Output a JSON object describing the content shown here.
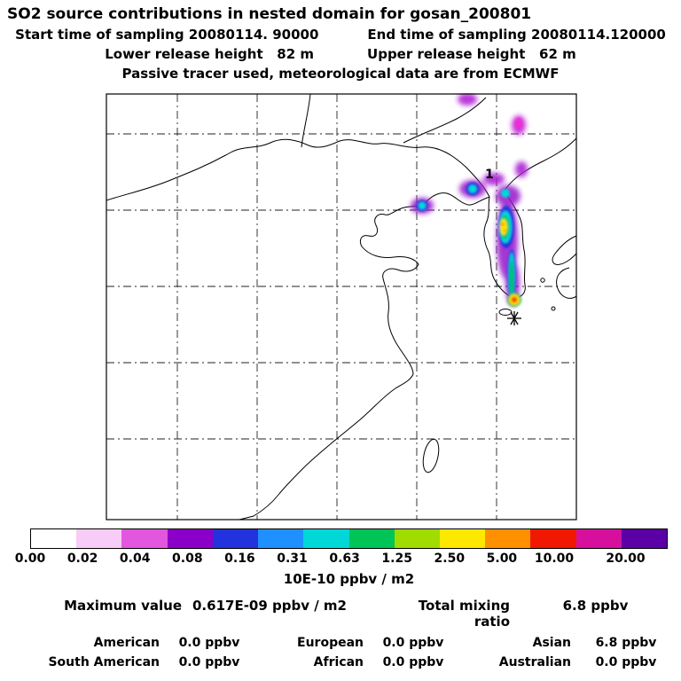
{
  "header": {
    "title": "SO2 source contributions in nested domain for gosan_200801",
    "start_time": "Start time of sampling 20080114. 90000",
    "end_time": "End time of sampling 20080114.120000",
    "lower_release": "Lower release height   82 m",
    "upper_release": "Upper release height   62 m",
    "tracer_note": "Passive tracer used, meteorological data are from ECMWF"
  },
  "map": {
    "plume_label": "1"
  },
  "colorbar": {
    "labels": [
      "0.00",
      "0.02",
      "0.04",
      "0.08",
      "0.16",
      "0.31",
      "0.63",
      "1.25",
      "2.50",
      "5.00",
      "10.00",
      "20.00"
    ],
    "colors": [
      "#ffffff",
      "#f7ccf6",
      "#e356de",
      "#8b00c8",
      "#2233dd",
      "#1e90ff",
      "#00d8d8",
      "#00c455",
      "#a0dc00",
      "#ffe800",
      "#ff9100",
      "#f01800",
      "#d6109c",
      "#5b00a5"
    ],
    "units": "10E-10 ppbv / m2"
  },
  "stats": {
    "max_label": "Maximum value",
    "max_value": "0.617E-09 ppbv / m2",
    "tmr_label": "Total mixing ratio",
    "tmr_value": "6.8 ppbv",
    "rows": [
      [
        {
          "label": "American",
          "value": "0.0 ppbv"
        },
        {
          "label": "European",
          "value": "0.0 ppbv"
        },
        {
          "label": "Asian",
          "value": "6.8 ppbv"
        }
      ],
      [
        {
          "label": "South American",
          "value": "0.0 ppbv"
        },
        {
          "label": "African",
          "value": "0.0 ppbv"
        },
        {
          "label": "Australian",
          "value": "0.0 ppbv"
        }
      ]
    ]
  },
  "chart_data": {
    "type": "heatmap",
    "title": "SO2 source contributions in nested domain for gosan_200801",
    "receptor_site": "gosan_200801",
    "sampling_start": "20080114. 90000",
    "sampling_end": "20080114.120000",
    "lower_release_height_m": 82,
    "upper_release_height_m": 62,
    "tracer_note": "Passive tracer used, meteorological data are from ECMWF",
    "units": "10E-10 ppbv / m2",
    "colorbar_levels": [
      0.0,
      0.02,
      0.04,
      0.08,
      0.16,
      0.31,
      0.63,
      1.25,
      2.5,
      5.0,
      10.0,
      20.0
    ],
    "maximum_value": "0.617E-09 ppbv / m2",
    "total_mixing_ratio_ppbv": 6.8,
    "source_contributions_ppbv": {
      "American": 0.0,
      "European": 0.0,
      "Asian": 6.8,
      "South American": 0.0,
      "African": 0.0,
      "Australian": 0.0
    }
  }
}
